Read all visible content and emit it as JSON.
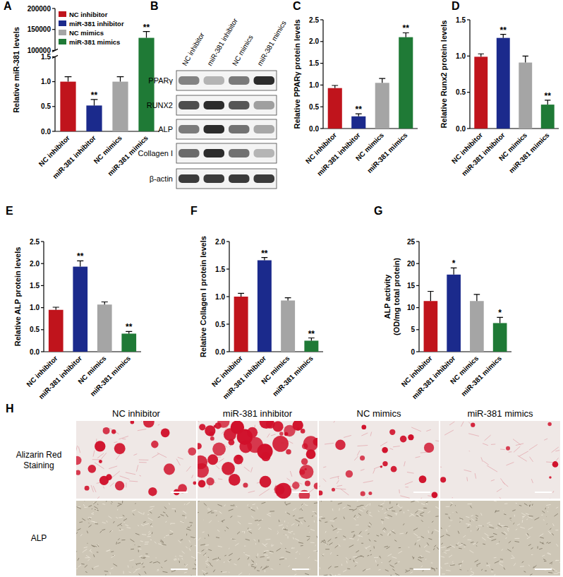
{
  "chart_data": [
    {
      "type": "bar",
      "title": "A",
      "y_label": "Relative miR-381 levels",
      "categories": [
        "NC inhibitor",
        "miR-381 inhibitor",
        "NC mimics",
        "miR-381 mimics"
      ],
      "values": [
        1.0,
        0.52,
        1.0,
        130000
      ],
      "errors": [
        0.1,
        0.12,
        0.1,
        15000
      ],
      "colors": [
        "#c0141c",
        "#1b2a8c",
        "#a5a5a5",
        "#1f7a36"
      ],
      "ylim": [
        [
          0,
          1.5
        ],
        [
          100000,
          200000
        ]
      ],
      "yticks": [
        [
          {
            "value": 0,
            "label": "0.0"
          },
          0.5,
          {
            "value": 1,
            "label": "1.0"
          },
          1.5
        ],
        [
          100000,
          150000,
          200000
        ]
      ],
      "annotations": [
        null,
        "**",
        null,
        "**"
      ],
      "legend": "top-left"
    },
    {
      "type": "bar",
      "title": "C",
      "y_label": "Relative PPARγ protein levels",
      "categories": [
        "NC inhibitor",
        "miR-381 inhibitor",
        "NC mimics",
        "miR-381 mimics"
      ],
      "values": [
        0.93,
        0.28,
        1.05,
        2.1
      ],
      "errors": [
        0.06,
        0.06,
        0.1,
        0.1
      ],
      "colors": [
        "#c0141c",
        "#1b2a8c",
        "#a5a5a5",
        "#1f7a36"
      ],
      "ylim": [
        0,
        2.5
      ],
      "yticks": [
        {
          "value": 0,
          "label": "0.0"
        },
        0.5,
        {
          "value": 1,
          "label": "1.0"
        },
        1.5,
        {
          "value": 2,
          "label": "2.0"
        },
        2.5
      ],
      "annotations": [
        null,
        "**",
        null,
        "**"
      ]
    },
    {
      "type": "bar",
      "title": "D",
      "y_label": "Relative Runx2 protein levels",
      "categories": [
        "NC inhibitor",
        "miR-381 inhibitor",
        "NC mimics",
        "miR-381 mimics"
      ],
      "values": [
        0.99,
        1.25,
        0.91,
        0.33
      ],
      "errors": [
        0.04,
        0.05,
        0.09,
        0.06
      ],
      "colors": [
        "#c0141c",
        "#1b2a8c",
        "#a5a5a5",
        "#1f7a36"
      ],
      "ylim": [
        0,
        1.5
      ],
      "yticks": [
        {
          "value": 0,
          "label": "0.0"
        },
        0.5,
        {
          "value": 1,
          "label": "1.0"
        },
        1.5
      ],
      "annotations": [
        null,
        "**",
        null,
        "**"
      ]
    },
    {
      "type": "bar",
      "title": "E",
      "y_label": "Relative ALP protein levels",
      "categories": [
        "NC inhibitor",
        "miR-381 inhibitor",
        "NC mimics",
        "miR-381 mimics"
      ],
      "values": [
        0.95,
        1.93,
        1.07,
        0.41
      ],
      "errors": [
        0.06,
        0.13,
        0.06,
        0.05
      ],
      "colors": [
        "#c0141c",
        "#1b2a8c",
        "#a5a5a5",
        "#1f7a36"
      ],
      "ylim": [
        0,
        2.5
      ],
      "yticks": [
        {
          "value": 0,
          "label": "0.0"
        },
        0.5,
        {
          "value": 1,
          "label": "1.0"
        },
        1.5,
        {
          "value": 2,
          "label": "2.0"
        },
        2.5
      ],
      "annotations": [
        null,
        "**",
        null,
        "**"
      ]
    },
    {
      "type": "bar",
      "title": "F",
      "y_label": "Relative Collagen I protein levels",
      "categories": [
        "NC inhibitor",
        "miR-381 inhibitor",
        "NC mimics",
        "miR-381 mimics"
      ],
      "values": [
        1.0,
        1.66,
        0.93,
        0.2
      ],
      "errors": [
        0.06,
        0.05,
        0.05,
        0.05
      ],
      "colors": [
        "#c0141c",
        "#1b2a8c",
        "#a5a5a5",
        "#1f7a36"
      ],
      "ylim": [
        0,
        2.0
      ],
      "yticks": [
        {
          "value": 0,
          "label": "0.0"
        },
        0.5,
        {
          "value": 1,
          "label": "1.0"
        },
        1.5,
        {
          "value": 2,
          "label": "2.0"
        }
      ],
      "annotations": [
        null,
        "**",
        null,
        "**"
      ]
    },
    {
      "type": "bar",
      "title": "G",
      "y_label": [
        "ALP activity",
        "(OD/mg total protein)"
      ],
      "categories": [
        "NC inhibitor",
        "miR-381 inhibitor",
        "NC mimics",
        "miR-381 mimics"
      ],
      "values": [
        11.5,
        17.5,
        11.5,
        6.5
      ],
      "errors": [
        2.2,
        1.5,
        1.5,
        1.3
      ],
      "colors": [
        "#c0141c",
        "#1b2a8c",
        "#a5a5a5",
        "#1f7a36"
      ],
      "ylim": [
        0,
        25
      ],
      "yticks": [
        0,
        5,
        10,
        15,
        20,
        25
      ],
      "annotations": [
        null,
        "*",
        null,
        "*"
      ]
    }
  ],
  "blot": {
    "title": "B",
    "lanes": [
      "NC inhibitor",
      "miR-381 inhibitor",
      "NC mimics",
      "miR-381 mimics"
    ],
    "rows": [
      "PPARγ",
      "RUNX2",
      "ALP",
      "Collagen I",
      "β-actin"
    ]
  },
  "micrographs": {
    "title": "H",
    "columns": [
      "NC inhibitor",
      "miR-381 inhibitor",
      "NC mimics",
      "miR-381 mimics"
    ],
    "rows": [
      [
        "Alizarin Red",
        "Staining"
      ],
      [
        "ALP"
      ]
    ]
  }
}
